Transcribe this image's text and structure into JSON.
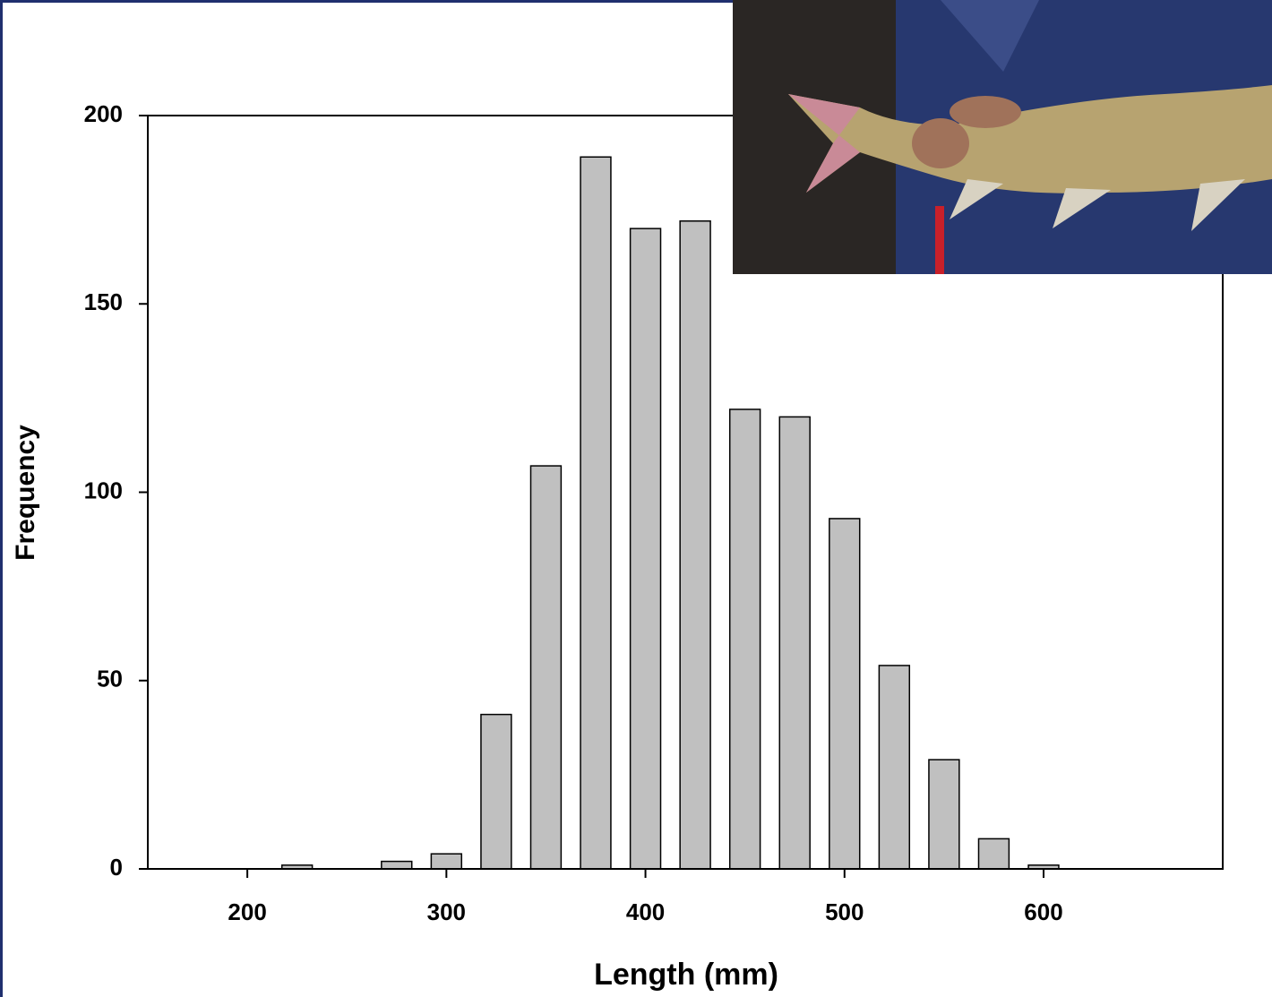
{
  "chart_data": {
    "type": "histogram",
    "xlabel": "Length (mm)",
    "ylabel": "Frequency",
    "bins": [
      212.5,
      237.5,
      262.5,
      287.5,
      312.5,
      337.5,
      362.5,
      387.5,
      412.5,
      437.5,
      462.5,
      487.5,
      512.5,
      537.5,
      562.5,
      587.5,
      612.5
    ],
    "values": [
      1,
      0,
      2,
      4,
      41,
      107,
      189,
      170,
      172,
      122,
      120,
      93,
      54,
      29,
      8,
      1
    ],
    "color": "#c0c0c0",
    "xlim": [
      150,
      690
    ],
    "xticks": [
      200,
      300,
      400,
      500,
      600
    ],
    "ylim": [
      0,
      200
    ],
    "yticks": [
      0,
      50,
      100,
      150,
      200
    ]
  }
}
